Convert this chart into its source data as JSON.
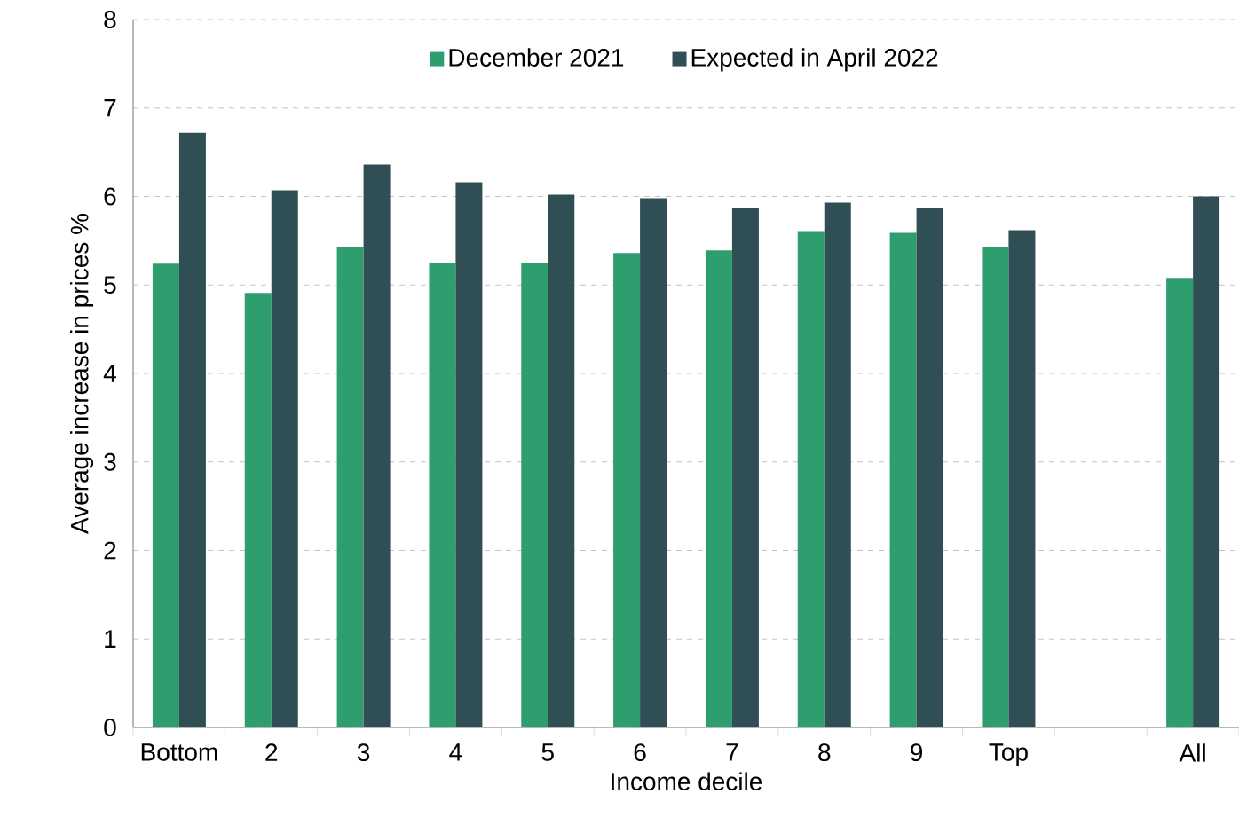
{
  "chart_data": {
    "type": "bar",
    "xlabel": "Income decile",
    "ylabel": "Average increase in prices %",
    "categories": [
      "Bottom",
      "2",
      "3",
      "4",
      "5",
      "6",
      "7",
      "8",
      "9",
      "Top",
      null,
      "All"
    ],
    "series": [
      {
        "name": "December 2021",
        "color": "#2e9e6f",
        "values": [
          5.24,
          4.91,
          5.43,
          5.25,
          5.25,
          5.36,
          5.39,
          5.61,
          5.59,
          5.43,
          null,
          5.08
        ]
      },
      {
        "name": "Expected in April 2022",
        "color": "#2f4f55",
        "values": [
          6.72,
          6.07,
          6.36,
          6.16,
          6.02,
          5.98,
          5.87,
          5.93,
          5.87,
          5.62,
          null,
          6.0
        ]
      }
    ],
    "ylim": [
      0,
      8
    ],
    "yticks": [
      0,
      1,
      2,
      3,
      4,
      5,
      6,
      7,
      8
    ],
    "grid": "y",
    "legend": "top"
  }
}
